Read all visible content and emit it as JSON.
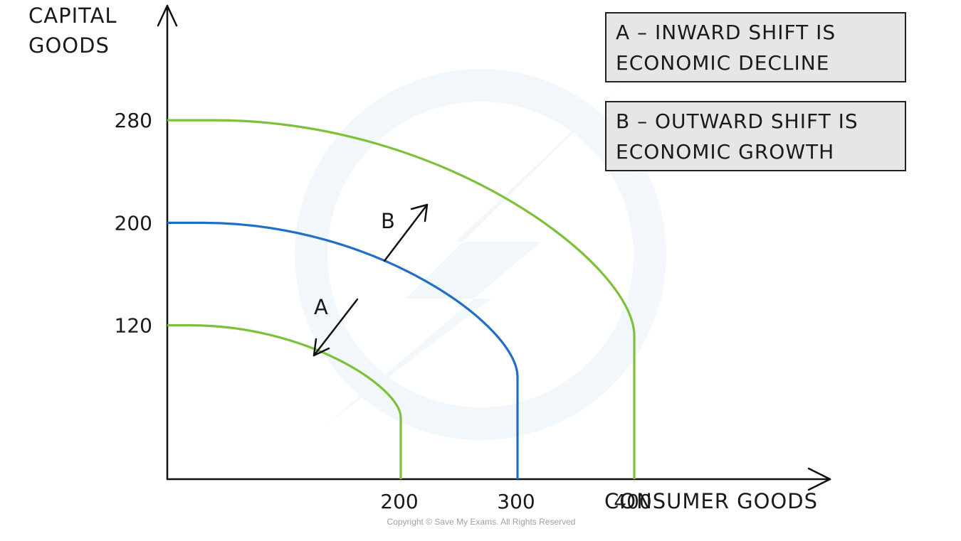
{
  "chart_data": {
    "type": "line",
    "title": "",
    "xlabel": "CONSUMER GOODS",
    "ylabel_lines": [
      "CAPITAL",
      "GOODS"
    ],
    "x_ticks": [
      200,
      300,
      400
    ],
    "y_ticks": [
      120,
      200,
      280
    ],
    "series": [
      {
        "color": "#7dc13b",
        "x_intercept": 200,
        "y_intercept": 120
      },
      {
        "color": "#1f6fc5",
        "x_intercept": 300,
        "y_intercept": 200
      },
      {
        "color": "#7dc13b",
        "x_intercept": 400,
        "y_intercept": 280
      }
    ],
    "annotations": [
      {
        "id": "A",
        "label": "A",
        "direction": "inward"
      },
      {
        "id": "B",
        "label": "B",
        "direction": "outward"
      }
    ]
  },
  "legend_boxes": [
    {
      "lines": [
        "A – INWARD SHIFT IS",
        "ECONOMIC DECLINE"
      ]
    },
    {
      "lines": [
        "B – OUTWARD SHIFT IS",
        "ECONOMIC GROWTH"
      ]
    }
  ],
  "copyright": "Copyright © Save My Exams. All Rights Reserved",
  "colors": {
    "green": "#7dc13b",
    "blue": "#1f6fc5",
    "box_fill": "#e6e6e6",
    "box_stroke": "#222222"
  }
}
